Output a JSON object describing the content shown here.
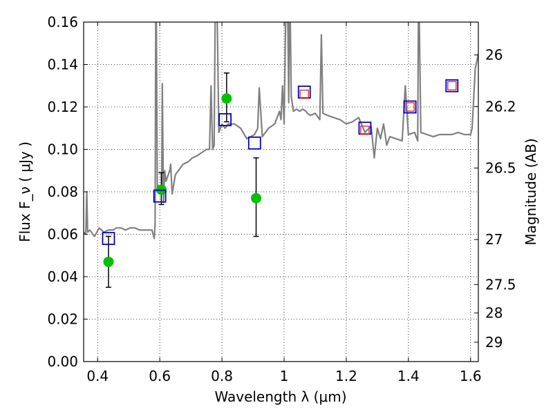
{
  "chart_data": {
    "type": "scatter",
    "xlabel": "Wavelength  λ (μm)",
    "ylabel": "Flux  F_ν  ( μJy )",
    "ylabel_right": "Magnitude (AB)",
    "xlim": [
      0.355,
      1.625
    ],
    "ylim": [
      0.0,
      0.16
    ],
    "x_ticks": [
      0.4,
      0.6,
      0.8,
      1.0,
      1.2,
      1.4,
      1.6
    ],
    "x_tick_labels": [
      "0.4",
      "0.6",
      "0.8",
      "1",
      "1.2",
      "1.4",
      "1.6"
    ],
    "y_ticks": [
      0.0,
      0.02,
      0.04,
      0.06,
      0.08,
      0.1,
      0.12,
      0.14,
      0.16
    ],
    "y_tick_labels": [
      "0.00",
      "0.02",
      "0.04",
      "0.06",
      "0.08",
      "0.10",
      "0.12",
      "0.14",
      "0.16"
    ],
    "right_axis_ticks": [
      {
        "label": "26",
        "flux": 0.1445
      },
      {
        "label": "26.2",
        "flux": 0.1202
      },
      {
        "label": "26.5",
        "flux": 0.0912
      },
      {
        "label": "27",
        "flux": 0.0575
      },
      {
        "label": "27.5",
        "flux": 0.0363
      },
      {
        "label": "28",
        "flux": 0.0229
      },
      {
        "label": "29",
        "flux": 0.0091
      }
    ],
    "grid": true,
    "colors": {
      "spectrum": "#808080",
      "observed": "#00c000",
      "model_blue": "#0000cc",
      "model_red": "#e03030",
      "errorbar": "#000000"
    },
    "spectrum": {
      "x": [
        0.355,
        0.362,
        0.365,
        0.368,
        0.375,
        0.39,
        0.405,
        0.42,
        0.435,
        0.45,
        0.46,
        0.475,
        0.49,
        0.505,
        0.52,
        0.535,
        0.55,
        0.565,
        0.575,
        0.582,
        0.585,
        0.587,
        0.589,
        0.592,
        0.596,
        0.6,
        0.606,
        0.608,
        0.612,
        0.616,
        0.62,
        0.632,
        0.635,
        0.64,
        0.65,
        0.66,
        0.675,
        0.69,
        0.705,
        0.72,
        0.74,
        0.75,
        0.76,
        0.765,
        0.77,
        0.775,
        0.778,
        0.785,
        0.79,
        0.8,
        0.81,
        0.82,
        0.84,
        0.86,
        0.88,
        0.905,
        0.915,
        0.92,
        0.93,
        0.95,
        0.97,
        0.985,
        0.99,
        0.995,
        1.0,
        1.005,
        1.012,
        1.015,
        1.017,
        1.02,
        1.023,
        1.03,
        1.04,
        1.05,
        1.06,
        1.07,
        1.075,
        1.085,
        1.1,
        1.115,
        1.12,
        1.125,
        1.14,
        1.16,
        1.18,
        1.2,
        1.22,
        1.24,
        1.26,
        1.28,
        1.29,
        1.3,
        1.31,
        1.32,
        1.33,
        1.34,
        1.36,
        1.38,
        1.39,
        1.4,
        1.42,
        1.43,
        1.432,
        1.435,
        1.44,
        1.46,
        1.48,
        1.5,
        1.52,
        1.54,
        1.56,
        1.58,
        1.6,
        1.605,
        1.615,
        1.625
      ],
      "y": [
        0.061,
        0.06,
        0.08,
        0.061,
        0.062,
        0.059,
        0.063,
        0.061,
        0.062,
        0.062,
        0.063,
        0.063,
        0.062,
        0.063,
        0.063,
        0.062,
        0.062,
        0.062,
        0.062,
        0.058,
        0.065,
        0.16,
        0.16,
        0.08,
        0.083,
        0.081,
        0.082,
        0.131,
        0.075,
        0.09,
        0.085,
        0.09,
        0.093,
        0.079,
        0.088,
        0.09,
        0.093,
        0.094,
        0.096,
        0.097,
        0.099,
        0.1,
        0.1,
        0.13,
        0.1,
        0.102,
        0.16,
        0.16,
        0.108,
        0.112,
        0.11,
        0.112,
        0.112,
        0.11,
        0.105,
        0.107,
        0.11,
        0.129,
        0.106,
        0.11,
        0.112,
        0.118,
        0.114,
        0.13,
        0.112,
        0.16,
        0.16,
        0.122,
        0.16,
        0.16,
        0.125,
        0.118,
        0.119,
        0.118,
        0.119,
        0.118,
        0.117,
        0.116,
        0.117,
        0.114,
        0.154,
        0.117,
        0.116,
        0.115,
        0.114,
        0.112,
        0.113,
        0.115,
        0.108,
        0.111,
        0.096,
        0.11,
        0.105,
        0.112,
        0.102,
        0.106,
        0.105,
        0.104,
        0.13,
        0.107,
        0.108,
        0.104,
        0.16,
        0.16,
        0.108,
        0.107,
        0.106,
        0.107,
        0.107,
        0.107,
        0.108,
        0.107,
        0.107,
        0.11,
        0.138,
        0.145
      ]
    },
    "observed": [
      {
        "x": 0.435,
        "y": 0.047,
        "yerr_low": 0.035,
        "yerr_high": 0.059
      },
      {
        "x": 0.605,
        "y": 0.081,
        "yerr_low": 0.074,
        "yerr_high": 0.089
      },
      {
        "x": 0.815,
        "y": 0.124,
        "yerr_low": 0.113,
        "yerr_high": 0.136
      },
      {
        "x": 0.91,
        "y": 0.077,
        "yerr_low": 0.059,
        "yerr_high": 0.096
      }
    ],
    "model_blue": [
      {
        "x": 0.435,
        "y": 0.058
      },
      {
        "x": 0.6,
        "y": 0.078
      },
      {
        "x": 0.81,
        "y": 0.114
      },
      {
        "x": 0.905,
        "y": 0.103
      },
      {
        "x": 1.065,
        "y": 0.127
      },
      {
        "x": 1.26,
        "y": 0.11
      },
      {
        "x": 1.405,
        "y": 0.12
      },
      {
        "x": 1.54,
        "y": 0.13
      }
    ],
    "model_red": [
      {
        "x": 1.065,
        "y": 0.126
      },
      {
        "x": 1.26,
        "y": 0.109
      },
      {
        "x": 1.405,
        "y": 0.12
      },
      {
        "x": 1.54,
        "y": 0.13
      }
    ]
  }
}
